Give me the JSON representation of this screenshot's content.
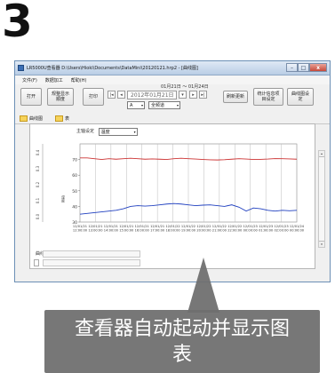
{
  "step_number": "3",
  "window": {
    "title": "LR5000U查看器 D:\\Users\\Hioki\\Documents\\DataMini\\20120121.hrp2 - [曲线图]",
    "controls": {
      "minimize": "–",
      "maximize": "□",
      "close": "x"
    }
  },
  "menu": [
    "文件(F)",
    "数据加工",
    "帮助(H)"
  ],
  "toolbar": {
    "open_label": "打开",
    "sequence_label": "规整显示顺度",
    "print_label": "打印",
    "date_range": "01月21日 ～ 01月24日",
    "date_value": "2012年01月21日",
    "a_value": "A",
    "channel_value": "全频道",
    "refresh_label": "刷新更新",
    "stats_label": "统计信息项目设定",
    "graph_settings_label": "曲线图设定"
  },
  "tabs": [
    {
      "label": "曲线图",
      "icon": "line-chart-icon"
    },
    {
      "label": "表",
      "icon": "table-icon"
    }
  ],
  "panel": {
    "primary_axis_label": "主轴设定",
    "primary_axis_value": "温度",
    "left_axis_label": "湿度",
    "bottom_label": "曲线图"
  },
  "chart_data": {
    "type": "line",
    "ylim": [
      30,
      80
    ],
    "y_ticks": [
      30,
      40,
      50,
      60,
      70
    ],
    "x_tick_labels": [
      "12/01/21 12:00:00",
      "12/01/21 13:00:00",
      "12/01/21 14:00:00",
      "12/01/21 15:00:00",
      "12/01/21 16:00:00",
      "12/01/21 17:00:00",
      "12/01/22 18:00:00",
      "12/01/22 19:00:00",
      "12/01/22 20:00:00",
      "12/01/22 21:00:00",
      "12/01/22 22:00:00",
      "12/01/23 00:00:00",
      "12/01/23 01:00:00",
      "12/01/23 02:00:00",
      "12/01/24 00:00:00"
    ],
    "left_extra_ticks": [
      "0.4",
      "0.3",
      "0.2",
      "0.1",
      "0.0"
    ],
    "series": [
      {
        "values": [
          71,
          71,
          70.5,
          70,
          70.5,
          70.2,
          70.5,
          70.8,
          70.5,
          70.2,
          70.4,
          70.2,
          70,
          70.5,
          70.8,
          70.5,
          70.3,
          70,
          69.8,
          69.7,
          69.9,
          70.2,
          70.5,
          70.3,
          70,
          70.1,
          70.3,
          70.6,
          70.5,
          70.4,
          70.2
        ],
        "color": "#cc3333"
      },
      {
        "values": [
          35,
          35.5,
          36,
          36.5,
          37,
          37.5,
          38.5,
          40,
          40.5,
          40.2,
          40.5,
          41,
          41.5,
          41.8,
          41.5,
          41,
          40.5,
          40.8,
          41,
          40.5,
          40,
          41,
          39.5,
          37,
          39,
          38.5,
          37.5,
          37,
          37.5,
          37.2,
          37.5
        ],
        "color": "#1f3fbf"
      }
    ]
  },
  "callout": {
    "text": "查看器自动起动并显示图表"
  }
}
